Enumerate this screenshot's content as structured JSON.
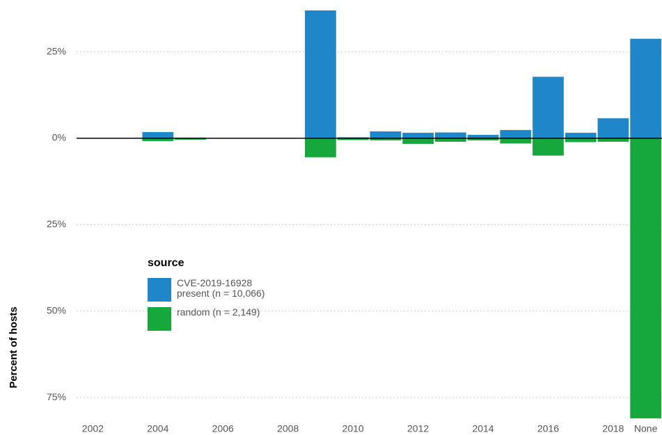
{
  "chart_data": {
    "type": "bar",
    "y_label": "Percent of hosts",
    "legend_title": "source",
    "categories": [
      "2002",
      null,
      "2004",
      null,
      "2006",
      null,
      "2008",
      null,
      "2010",
      null,
      "2012",
      null,
      "2014",
      null,
      "2016",
      null,
      "2018",
      "None"
    ],
    "series": [
      {
        "name": "CVE-2019-16928 present (n = 10,066)",
        "color": "#1f87c9",
        "values": [
          null,
          null,
          1.8,
          0.2,
          null,
          null,
          null,
          37,
          0.3,
          2.0,
          1.6,
          1.7,
          1.0,
          2.4,
          17.8,
          1.6,
          5.8,
          28.8
        ]
      },
      {
        "name": "random (n = 2,149)",
        "color": "#16a83c",
        "values": [
          null,
          null,
          -0.8,
          -0.4,
          null,
          null,
          null,
          -5.5,
          -0.5,
          -0.6,
          -1.6,
          -1.0,
          -0.6,
          -1.5,
          -5.0,
          -1.1,
          -1.0,
          -81
        ]
      }
    ],
    "ylim": [
      -81,
      38
    ],
    "yticks": [
      {
        "value": -75,
        "label": "75%"
      },
      {
        "value": -50,
        "label": "50%"
      },
      {
        "value": -25,
        "label": "25%"
      },
      {
        "value": 0,
        "label": "0%"
      },
      {
        "value": 25,
        "label": "25%"
      }
    ],
    "grid": true
  }
}
